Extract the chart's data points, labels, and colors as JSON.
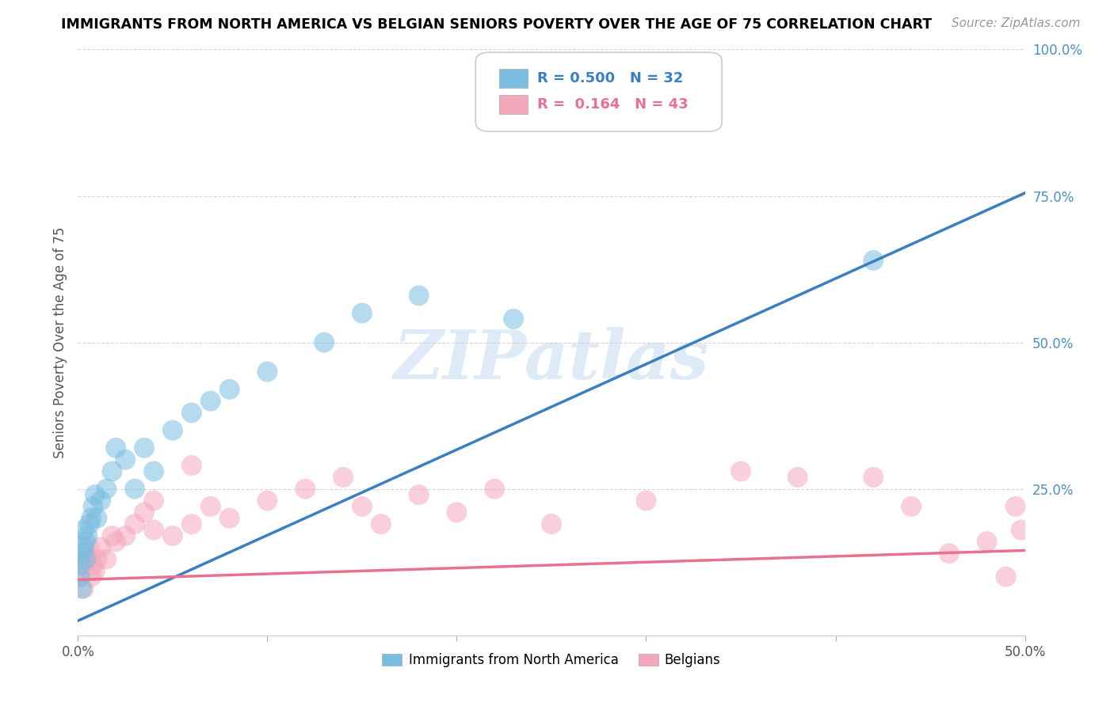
{
  "title": "IMMIGRANTS FROM NORTH AMERICA VS BELGIAN SENIORS POVERTY OVER THE AGE OF 75 CORRELATION CHART",
  "source": "Source: ZipAtlas.com",
  "ylabel": "Seniors Poverty Over the Age of 75",
  "xlim": [
    0.0,
    0.5
  ],
  "ylim": [
    0.0,
    1.0
  ],
  "xticks": [
    0.0,
    0.1,
    0.2,
    0.3,
    0.4,
    0.5
  ],
  "xticklabels": [
    "0.0%",
    "",
    "",
    "",
    "",
    "50.0%"
  ],
  "yticks": [
    0.0,
    0.25,
    0.5,
    0.75,
    1.0
  ],
  "yticklabels": [
    "",
    "25.0%",
    "50.0%",
    "75.0%",
    "100.0%"
  ],
  "blue_color": "#7abde0",
  "pink_color": "#f4a8bc",
  "blue_line_color": "#3a7fc1",
  "pink_line_color": "#e8728e",
  "R_blue": 0.5,
  "N_blue": 32,
  "R_pink": 0.164,
  "N_pink": 43,
  "legend_label_blue": "Immigrants from North America",
  "legend_label_pink": "Belgians",
  "watermark": "ZIPatlas",
  "blue_line_x0": 0.0,
  "blue_line_y0": 0.025,
  "blue_line_x1": 0.5,
  "blue_line_y1": 0.755,
  "pink_line_x0": 0.0,
  "pink_line_y0": 0.095,
  "pink_line_x1": 0.5,
  "pink_line_y1": 0.145,
  "blue_scatter_x": [
    0.001,
    0.001,
    0.002,
    0.002,
    0.003,
    0.003,
    0.004,
    0.004,
    0.005,
    0.006,
    0.007,
    0.008,
    0.009,
    0.01,
    0.012,
    0.015,
    0.018,
    0.02,
    0.025,
    0.03,
    0.035,
    0.04,
    0.05,
    0.06,
    0.07,
    0.08,
    0.1,
    0.13,
    0.15,
    0.18,
    0.23,
    0.42
  ],
  "blue_scatter_y": [
    0.1,
    0.12,
    0.08,
    0.14,
    0.15,
    0.18,
    0.13,
    0.16,
    0.17,
    0.19,
    0.2,
    0.22,
    0.24,
    0.2,
    0.23,
    0.25,
    0.28,
    0.32,
    0.3,
    0.25,
    0.32,
    0.28,
    0.35,
    0.38,
    0.4,
    0.42,
    0.45,
    0.5,
    0.55,
    0.58,
    0.54,
    0.64
  ],
  "pink_scatter_x": [
    0.001,
    0.002,
    0.003,
    0.004,
    0.005,
    0.006,
    0.007,
    0.008,
    0.009,
    0.01,
    0.012,
    0.015,
    0.018,
    0.02,
    0.025,
    0.03,
    0.035,
    0.04,
    0.05,
    0.06,
    0.07,
    0.08,
    0.1,
    0.12,
    0.14,
    0.16,
    0.18,
    0.2,
    0.22,
    0.25,
    0.3,
    0.35,
    0.38,
    0.42,
    0.44,
    0.46,
    0.48,
    0.49,
    0.495,
    0.498,
    0.04,
    0.06,
    0.15
  ],
  "pink_scatter_y": [
    0.1,
    0.12,
    0.08,
    0.14,
    0.13,
    0.15,
    0.1,
    0.12,
    0.11,
    0.13,
    0.15,
    0.13,
    0.17,
    0.16,
    0.17,
    0.19,
    0.21,
    0.18,
    0.17,
    0.19,
    0.22,
    0.2,
    0.23,
    0.25,
    0.27,
    0.19,
    0.24,
    0.21,
    0.25,
    0.19,
    0.23,
    0.28,
    0.27,
    0.27,
    0.22,
    0.14,
    0.16,
    0.1,
    0.22,
    0.18,
    0.23,
    0.29,
    0.22
  ]
}
